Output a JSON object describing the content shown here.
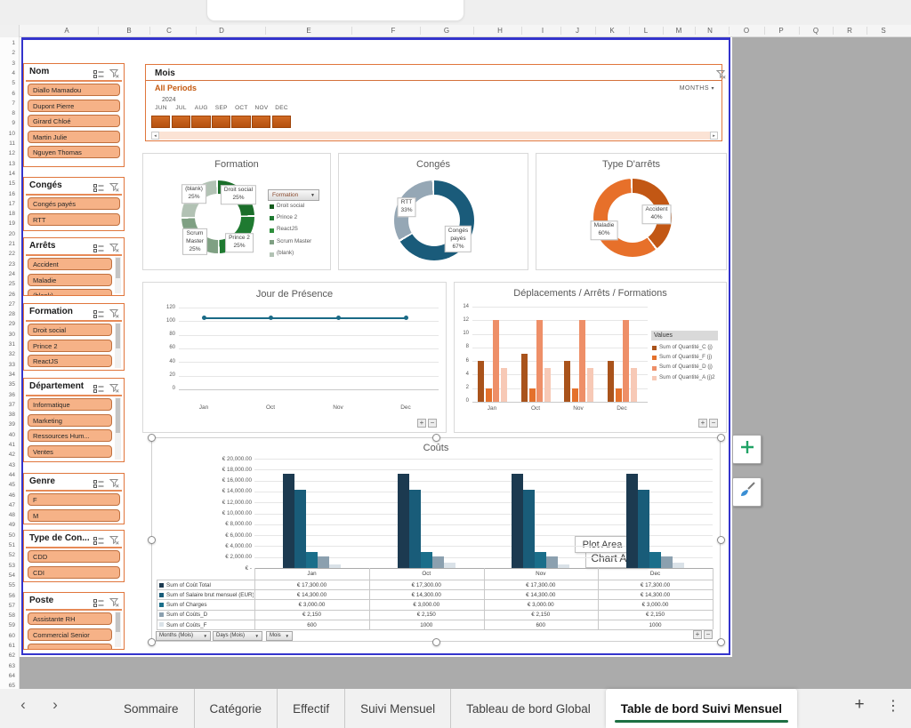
{
  "sheet": {
    "columns": [
      "A",
      "B",
      "C",
      "D",
      "E",
      "F",
      "G",
      "H",
      "I",
      "J",
      "K",
      "L",
      "M",
      "N",
      "O",
      "P",
      "Q",
      "R",
      "S"
    ],
    "row_count": 65
  },
  "colors": {
    "accent_orange": "#C55A11",
    "slicer_border": "#E0763C",
    "slicer_item_bg": "#F6B287",
    "slicer_item_border": "#C0703F",
    "timeline_bar_top": "#D06A24",
    "timeline_bar_bottom": "#B4500F",
    "timeline_track": "#FBE3D5",
    "selection_blue": "#3434CC",
    "outside_grey": "#ABABAB",
    "tab_active_underline": "#1E7044",
    "gridline": "#E6E6E6"
  },
  "slicers": [
    {
      "title": "Nom",
      "items": [
        "Diallo Mamadou",
        "Dupont Pierre",
        "Girard Chloé",
        "Martin Julie",
        "Nguyen Thomas"
      ],
      "scrollbar": false,
      "partial": null
    },
    {
      "title": "Congés",
      "items": [
        "Congés payés",
        "RTT"
      ],
      "scrollbar": false,
      "partial": null
    },
    {
      "title": "Arrêts",
      "items": [
        "Accident",
        "Maladie"
      ],
      "scrollbar": true,
      "partial": "(blank)"
    },
    {
      "title": "Formation",
      "items": [
        "Droit social",
        "Prince 2",
        "ReactJS"
      ],
      "scrollbar": true,
      "partial": null
    },
    {
      "title": "Département",
      "items": [
        "Informatique",
        "Marketing",
        "Ressources Hum...",
        "Ventes"
      ],
      "scrollbar": true,
      "partial": null
    },
    {
      "title": "Genre",
      "items": [
        "F",
        "M"
      ],
      "scrollbar": false,
      "partial": null
    },
    {
      "title": "Type de Con...",
      "items": [
        "CDD",
        "CDI"
      ],
      "scrollbar": false,
      "partial": null
    },
    {
      "title": "Poste",
      "items": [
        "Assistante RH",
        "Commercial Senior"
      ],
      "scrollbar": true,
      "partial": ""
    }
  ],
  "timeline": {
    "title": "Mois",
    "selection_label": "All Periods",
    "level_label": "MONTHS",
    "year": "2024",
    "months": [
      "JUN",
      "JUL",
      "AUG",
      "SEP",
      "OCT",
      "NOV",
      "DEC"
    ]
  },
  "chart_data": [
    {
      "id": "formation",
      "type": "pie",
      "donut": true,
      "title": "Formation",
      "slices": [
        {
          "label": "Droit social",
          "value": 25
        },
        {
          "label": "Prince 2",
          "value": 25
        },
        {
          "label": "Scrum Master",
          "value": 25
        },
        {
          "label": "(blank)",
          "value": 25
        }
      ],
      "slice_colors": [
        "#1B6E2A",
        "#1F7A31",
        "#7FA083",
        "#B2C2B4"
      ],
      "data_labels": [
        [
          "(blank)",
          "25%"
        ],
        [
          "Droit social",
          "25%"
        ],
        [
          "Prince 2",
          "25%"
        ],
        [
          "Scrum",
          "Master",
          "25%"
        ]
      ],
      "filter_button": "Formation",
      "legend": [
        {
          "label": "Droit social",
          "color": "#145C1D"
        },
        {
          "label": "Prince 2",
          "color": "#1F7A31"
        },
        {
          "label": "ReactJS",
          "color": "#2E8F3C"
        },
        {
          "label": "Scrum Master",
          "color": "#7FA083"
        },
        {
          "label": "(blank)",
          "color": "#B2C2B4"
        }
      ]
    },
    {
      "id": "conges",
      "type": "pie",
      "donut": true,
      "title": "Congés",
      "slices": [
        {
          "label": "Congés payés",
          "value": 67
        },
        {
          "label": "RTT",
          "value": 33
        }
      ],
      "slice_colors": [
        "#1A5B7A",
        "#95A7B5"
      ],
      "data_labels": [
        [
          "RTT",
          "33%"
        ],
        [
          "Congés",
          "payés",
          "67%"
        ]
      ]
    },
    {
      "id": "arrets",
      "type": "pie",
      "donut": true,
      "title": "Type D'arrêts",
      "slices": [
        {
          "label": "Accident",
          "value": 40
        },
        {
          "label": "Maladie",
          "value": 60
        }
      ],
      "slice_colors": [
        "#C25714",
        "#E7702A"
      ],
      "data_labels": [
        [
          "Accident",
          "40%"
        ],
        [
          "Maladie",
          "60%"
        ]
      ]
    },
    {
      "id": "presence",
      "type": "line",
      "title": "Jour de Présence",
      "categories": [
        "Jan",
        "Oct",
        "Nov",
        "Dec"
      ],
      "values": [
        105,
        105,
        105,
        105
      ],
      "ylim": [
        0,
        120
      ],
      "yticks": [
        "120",
        "100",
        "80",
        "60",
        "40",
        "20",
        "0"
      ],
      "line_color": "#1A6A86"
    },
    {
      "id": "deplacements",
      "type": "bar",
      "title": "Déplacements / Arrêts / Formations",
      "categories": [
        "Jan",
        "Oct",
        "Nov",
        "Dec"
      ],
      "legend_title": "Values",
      "ylim": [
        0,
        14
      ],
      "yticks": [
        "14",
        "12",
        "10",
        "8",
        "6",
        "4",
        "2",
        "0"
      ],
      "series": [
        {
          "name": "Sum of Quantité_C (j)",
          "color": "#A9531B",
          "values": [
            6,
            7,
            6,
            6
          ]
        },
        {
          "name": "Sum of Quantité_F (j)",
          "color": "#E4712C",
          "values": [
            2,
            2,
            2,
            2
          ]
        },
        {
          "name": "Sum of Quantité_D (j)",
          "color": "#EE8F68",
          "values": [
            12,
            12,
            12,
            12
          ]
        },
        {
          "name": "Sum of Quantité_A (j)2",
          "color": "#F7C9B6",
          "values": [
            5,
            5,
            5,
            5
          ]
        }
      ]
    },
    {
      "id": "couts",
      "type": "bar",
      "title": "Coûts",
      "categories": [
        "Jan",
        "Oct",
        "Nov",
        "Dec"
      ],
      "ylim": [
        0,
        20000
      ],
      "y_tick_labels": [
        "€ 20,000.00",
        "€ 18,000.00",
        "€ 16,000.00",
        "€ 14,000.00",
        "€ 12,000.00",
        "€ 10,000.00",
        "€ 8,000.00",
        "€ 6,000.00",
        "€ 4,000.00",
        "€ 2,000.00",
        "€ -"
      ],
      "series": [
        {
          "name": "Sum of Coût Total",
          "color": "#1C3A50",
          "values": [
            17300,
            17300,
            17300,
            17300
          ],
          "display": [
            "€ 17,300.00",
            "€ 17,300.00",
            "€ 17,300.00",
            "€ 17,300.00"
          ]
        },
        {
          "name": "Sum of Salaire brut mensuel (EUR)",
          "color": "#195C79",
          "values": [
            14300,
            14300,
            14300,
            14300
          ],
          "display": [
            "€ 14,300.00",
            "€ 14,300.00",
            "€ 14,300.00",
            "€ 14,300.00"
          ]
        },
        {
          "name": "Sum of Charges",
          "color": "#1A6E8A",
          "values": [
            3000,
            3000,
            3000,
            3000
          ],
          "display": [
            "€ 3,000.00",
            "€ 3,000.00",
            "€ 3,000.00",
            "€ 3,000.00"
          ]
        },
        {
          "name": "Sum of Coûts_D",
          "color": "#8BA0AF",
          "values": [
            2150,
            2150,
            2150,
            2150
          ],
          "display": [
            "€ 2,150",
            "€ 2,150",
            "€ 2,150",
            "€ 2,150"
          ]
        },
        {
          "name": "Sum of Coûts_F",
          "color": "#DAE2E8",
          "values": [
            600,
            1000,
            600,
            1000
          ],
          "display": [
            "600",
            "1000",
            "600",
            "1000"
          ]
        }
      ],
      "field_buttons": [
        "Months (Mois)",
        "Days (Mois)",
        "Mois"
      ],
      "tooltips": {
        "plot": "Plot Area",
        "chart": "Chart Area"
      }
    }
  ],
  "tabs": {
    "back": "‹",
    "forward": "›",
    "add": "+",
    "more": "⋮",
    "active_index": 5,
    "items": [
      {
        "label": "Sommaire"
      },
      {
        "label": "Catégorie"
      },
      {
        "label": "Effectif"
      },
      {
        "label": "Suivi Mensuel"
      },
      {
        "label": "Tableau de bord Global"
      },
      {
        "label": "Table de bord Suivi Mensuel"
      }
    ]
  }
}
